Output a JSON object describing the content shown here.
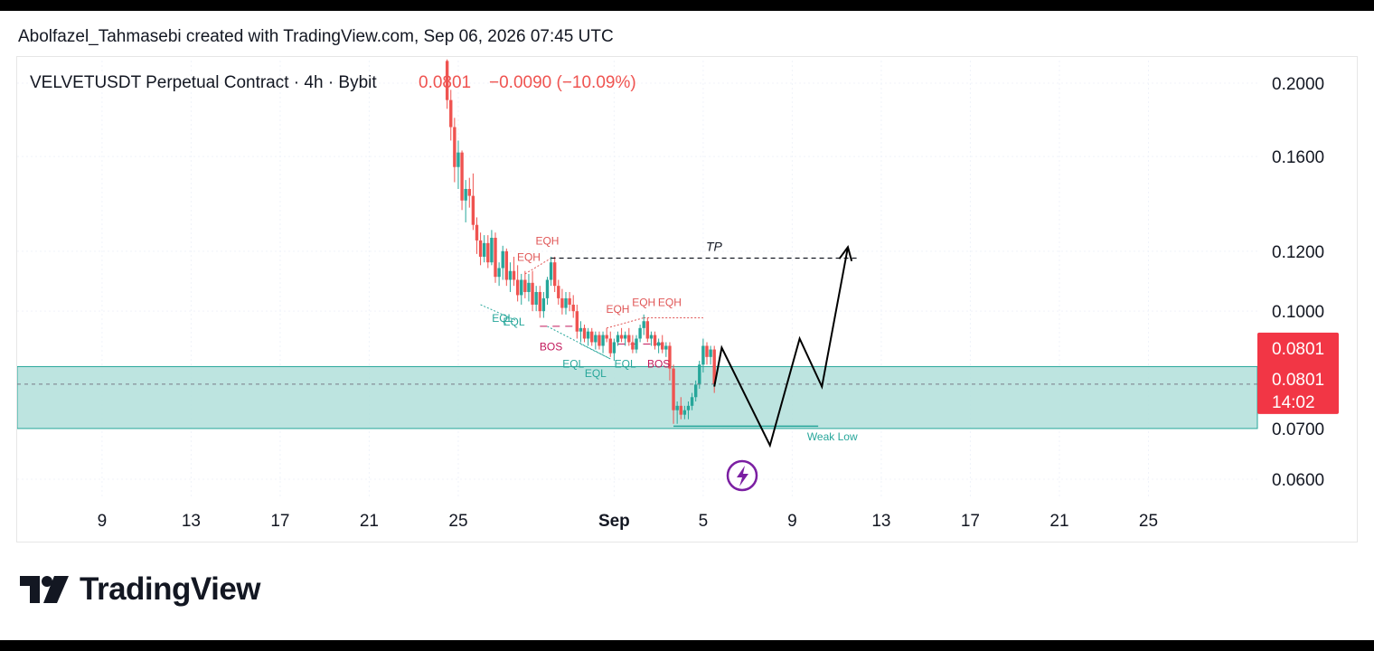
{
  "credit": "Abolfazel_Tahmasebi created with TradingView.com, Sep 06, 2026 07:45 UTC",
  "legend": {
    "symbol": "VELVETUSDT Perpetual Contract · 4h · Bybit",
    "price": "0.0801",
    "change": "−0.0090 (−10.09%)"
  },
  "brand": {
    "name": "TradingView"
  },
  "colors": {
    "up": "#26a69a",
    "down": "#ef5350",
    "zone": "#b2dfdb",
    "price_tag": "#f23645",
    "bos_label": "#c2185b",
    "eqh_label": "#e05555",
    "eql_label": "#26a69a",
    "projection": "#000000",
    "icon": "#7b1fa2"
  },
  "chart_data": {
    "type": "candlestick",
    "y_scale": "log",
    "ylim": [
      0.057,
      0.21
    ],
    "y_ticks": [
      {
        "value": 0.2,
        "label": "0.2000"
      },
      {
        "value": 0.16,
        "label": "0.1600"
      },
      {
        "value": 0.12,
        "label": "0.1200"
      },
      {
        "value": 0.1,
        "label": "0.1000"
      },
      {
        "value": 0.07,
        "label": "0.0700"
      },
      {
        "value": 0.06,
        "label": "0.0600"
      }
    ],
    "x_domain": [
      "Aug 6",
      "Sep 29"
    ],
    "x_ticks": [
      {
        "date": "Aug 9",
        "label": "9"
      },
      {
        "date": "Aug 13",
        "label": "13"
      },
      {
        "date": "Aug 17",
        "label": "17"
      },
      {
        "date": "Aug 21",
        "label": "21"
      },
      {
        "date": "Aug 25",
        "label": "25"
      },
      {
        "date": "Sep 1",
        "label": "Sep",
        "bold": true
      },
      {
        "date": "Sep 5",
        "label": "5"
      },
      {
        "date": "Sep 9",
        "label": "9"
      },
      {
        "date": "Sep 13",
        "label": "13"
      },
      {
        "date": "Sep 17",
        "label": "17"
      },
      {
        "date": "Sep 21",
        "label": "21"
      },
      {
        "date": "Sep 25",
        "label": "25"
      }
    ],
    "candles": [
      {
        "t": "Aug 24 12:00",
        "o": 0.214,
        "h": 0.215,
        "l": 0.185,
        "c": 0.19
      },
      {
        "t": "Aug 24 16:00",
        "o": 0.19,
        "h": 0.196,
        "l": 0.168,
        "c": 0.175
      },
      {
        "t": "Aug 24 20:00",
        "o": 0.175,
        "h": 0.18,
        "l": 0.148,
        "c": 0.155
      },
      {
        "t": "Aug 25 00:00",
        "o": 0.155,
        "h": 0.168,
        "l": 0.145,
        "c": 0.162
      },
      {
        "t": "Aug 25 04:00",
        "o": 0.162,
        "h": 0.163,
        "l": 0.136,
        "c": 0.14
      },
      {
        "t": "Aug 25 08:00",
        "o": 0.14,
        "h": 0.149,
        "l": 0.131,
        "c": 0.145
      },
      {
        "t": "Aug 25 12:00",
        "o": 0.145,
        "h": 0.15,
        "l": 0.137,
        "c": 0.142
      },
      {
        "t": "Aug 25 16:00",
        "o": 0.142,
        "h": 0.152,
        "l": 0.128,
        "c": 0.13
      },
      {
        "t": "Aug 25 20:00",
        "o": 0.13,
        "h": 0.133,
        "l": 0.119,
        "c": 0.124
      },
      {
        "t": "Aug 26 00:00",
        "o": 0.124,
        "h": 0.127,
        "l": 0.115,
        "c": 0.118
      },
      {
        "t": "Aug 26 04:00",
        "o": 0.118,
        "h": 0.126,
        "l": 0.116,
        "c": 0.123
      },
      {
        "t": "Aug 26 08:00",
        "o": 0.123,
        "h": 0.126,
        "l": 0.114,
        "c": 0.116
      },
      {
        "t": "Aug 26 12:00",
        "o": 0.116,
        "h": 0.128,
        "l": 0.115,
        "c": 0.125
      },
      {
        "t": "Aug 26 16:00",
        "o": 0.125,
        "h": 0.127,
        "l": 0.109,
        "c": 0.111
      },
      {
        "t": "Aug 26 20:00",
        "o": 0.111,
        "h": 0.116,
        "l": 0.108,
        "c": 0.114
      },
      {
        "t": "Aug 27 00:00",
        "o": 0.114,
        "h": 0.122,
        "l": 0.11,
        "c": 0.12
      },
      {
        "t": "Aug 27 04:00",
        "o": 0.12,
        "h": 0.121,
        "l": 0.108,
        "c": 0.11
      },
      {
        "t": "Aug 27 08:00",
        "o": 0.11,
        "h": 0.116,
        "l": 0.106,
        "c": 0.113
      },
      {
        "t": "Aug 27 12:00",
        "o": 0.113,
        "h": 0.118,
        "l": 0.108,
        "c": 0.11
      },
      {
        "t": "Aug 27 16:00",
        "o": 0.11,
        "h": 0.115,
        "l": 0.103,
        "c": 0.105
      },
      {
        "t": "Aug 27 20:00",
        "o": 0.105,
        "h": 0.112,
        "l": 0.102,
        "c": 0.11
      },
      {
        "t": "Aug 28 00:00",
        "o": 0.11,
        "h": 0.113,
        "l": 0.104,
        "c": 0.106
      },
      {
        "t": "Aug 28 04:00",
        "o": 0.106,
        "h": 0.112,
        "l": 0.103,
        "c": 0.109
      },
      {
        "t": "Aug 28 08:00",
        "o": 0.109,
        "h": 0.113,
        "l": 0.1,
        "c": 0.102
      },
      {
        "t": "Aug 28 12:00",
        "o": 0.102,
        "h": 0.108,
        "l": 0.1,
        "c": 0.106
      },
      {
        "t": "Aug 28 16:00",
        "o": 0.106,
        "h": 0.108,
        "l": 0.098,
        "c": 0.1
      },
      {
        "t": "Aug 28 20:00",
        "o": 0.1,
        "h": 0.106,
        "l": 0.098,
        "c": 0.104
      },
      {
        "t": "Aug 29 00:00",
        "o": 0.104,
        "h": 0.111,
        "l": 0.102,
        "c": 0.11
      },
      {
        "t": "Aug 29 04:00",
        "o": 0.11,
        "h": 0.118,
        "l": 0.108,
        "c": 0.116
      },
      {
        "t": "Aug 29 08:00",
        "o": 0.116,
        "h": 0.118,
        "l": 0.106,
        "c": 0.108
      },
      {
        "t": "Aug 29 12:00",
        "o": 0.108,
        "h": 0.11,
        "l": 0.102,
        "c": 0.104
      },
      {
        "t": "Aug 29 16:00",
        "o": 0.104,
        "h": 0.107,
        "l": 0.099,
        "c": 0.101
      },
      {
        "t": "Aug 29 20:00",
        "o": 0.101,
        "h": 0.106,
        "l": 0.099,
        "c": 0.104
      },
      {
        "t": "Aug 30 00:00",
        "o": 0.104,
        "h": 0.106,
        "l": 0.1,
        "c": 0.102
      },
      {
        "t": "Aug 30 04:00",
        "o": 0.102,
        "h": 0.105,
        "l": 0.098,
        "c": 0.1
      },
      {
        "t": "Aug 30 08:00",
        "o": 0.1,
        "h": 0.102,
        "l": 0.092,
        "c": 0.094
      },
      {
        "t": "Aug 30 12:00",
        "o": 0.094,
        "h": 0.097,
        "l": 0.091,
        "c": 0.095
      },
      {
        "t": "Aug 30 16:00",
        "o": 0.095,
        "h": 0.096,
        "l": 0.091,
        "c": 0.092
      },
      {
        "t": "Aug 30 20:00",
        "o": 0.092,
        "h": 0.095,
        "l": 0.09,
        "c": 0.094
      },
      {
        "t": "Aug 31 00:00",
        "o": 0.094,
        "h": 0.095,
        "l": 0.09,
        "c": 0.091
      },
      {
        "t": "Aug 31 04:00",
        "o": 0.091,
        "h": 0.094,
        "l": 0.089,
        "c": 0.093
      },
      {
        "t": "Aug 31 08:00",
        "o": 0.093,
        "h": 0.094,
        "l": 0.089,
        "c": 0.09
      },
      {
        "t": "Aug 31 12:00",
        "o": 0.09,
        "h": 0.094,
        "l": 0.088,
        "c": 0.093
      },
      {
        "t": "Aug 31 16:00",
        "o": 0.093,
        "h": 0.095,
        "l": 0.091,
        "c": 0.092
      },
      {
        "t": "Aug 31 20:00",
        "o": 0.092,
        "h": 0.094,
        "l": 0.087,
        "c": 0.088
      },
      {
        "t": "Sep 1 00:00",
        "o": 0.088,
        "h": 0.092,
        "l": 0.086,
        "c": 0.091
      },
      {
        "t": "Sep 1 04:00",
        "o": 0.091,
        "h": 0.094,
        "l": 0.09,
        "c": 0.093
      },
      {
        "t": "Sep 1 08:00",
        "o": 0.093,
        "h": 0.095,
        "l": 0.091,
        "c": 0.092
      },
      {
        "t": "Sep 1 12:00",
        "o": 0.092,
        "h": 0.094,
        "l": 0.09,
        "c": 0.093
      },
      {
        "t": "Sep 1 16:00",
        "o": 0.093,
        "h": 0.095,
        "l": 0.09,
        "c": 0.091
      },
      {
        "t": "Sep 1 20:00",
        "o": 0.091,
        "h": 0.093,
        "l": 0.088,
        "c": 0.089
      },
      {
        "t": "Sep 2 00:00",
        "o": 0.089,
        "h": 0.093,
        "l": 0.088,
        "c": 0.092
      },
      {
        "t": "Sep 2 04:00",
        "o": 0.092,
        "h": 0.096,
        "l": 0.091,
        "c": 0.095
      },
      {
        "t": "Sep 2 08:00",
        "o": 0.095,
        "h": 0.099,
        "l": 0.093,
        "c": 0.097
      },
      {
        "t": "Sep 2 12:00",
        "o": 0.097,
        "h": 0.098,
        "l": 0.091,
        "c": 0.092
      },
      {
        "t": "Sep 2 16:00",
        "o": 0.092,
        "h": 0.094,
        "l": 0.09,
        "c": 0.093
      },
      {
        "t": "Sep 2 20:00",
        "o": 0.093,
        "h": 0.094,
        "l": 0.089,
        "c": 0.09
      },
      {
        "t": "Sep 3 00:00",
        "o": 0.09,
        "h": 0.092,
        "l": 0.088,
        "c": 0.091
      },
      {
        "t": "Sep 3 04:00",
        "o": 0.091,
        "h": 0.093,
        "l": 0.088,
        "c": 0.089
      },
      {
        "t": "Sep 3 08:00",
        "o": 0.089,
        "h": 0.091,
        "l": 0.087,
        "c": 0.09
      },
      {
        "t": "Sep 3 12:00",
        "o": 0.09,
        "h": 0.091,
        "l": 0.081,
        "c": 0.084
      },
      {
        "t": "Sep 3 16:00",
        "o": 0.084,
        "h": 0.085,
        "l": 0.071,
        "c": 0.074
      },
      {
        "t": "Sep 3 20:00",
        "o": 0.074,
        "h": 0.076,
        "l": 0.071,
        "c": 0.075
      },
      {
        "t": "Sep 4 00:00",
        "o": 0.075,
        "h": 0.077,
        "l": 0.072,
        "c": 0.073
      },
      {
        "t": "Sep 4 04:00",
        "o": 0.073,
        "h": 0.075,
        "l": 0.072,
        "c": 0.074
      },
      {
        "t": "Sep 4 08:00",
        "o": 0.074,
        "h": 0.076,
        "l": 0.072,
        "c": 0.075
      },
      {
        "t": "Sep 4 12:00",
        "o": 0.075,
        "h": 0.078,
        "l": 0.074,
        "c": 0.077
      },
      {
        "t": "Sep 4 16:00",
        "o": 0.077,
        "h": 0.081,
        "l": 0.076,
        "c": 0.08
      },
      {
        "t": "Sep 4 20:00",
        "o": 0.08,
        "h": 0.086,
        "l": 0.079,
        "c": 0.085
      },
      {
        "t": "Sep 5 00:00",
        "o": 0.085,
        "h": 0.092,
        "l": 0.083,
        "c": 0.09
      },
      {
        "t": "Sep 5 04:00",
        "o": 0.09,
        "h": 0.091,
        "l": 0.085,
        "c": 0.087
      },
      {
        "t": "Sep 5 08:00",
        "o": 0.087,
        "h": 0.09,
        "l": 0.085,
        "c": 0.089
      },
      {
        "t": "Sep 5 12:00",
        "o": 0.089,
        "h": 0.09,
        "l": 0.078,
        "c": 0.0801
      }
    ],
    "current_price": {
      "value": 0.0801,
      "labels": [
        "0.0801",
        "0.0801"
      ],
      "countdown": "14:02"
    },
    "zones": [
      {
        "name": "demand-zone",
        "from": 0.07,
        "to": 0.0845
      }
    ],
    "levels": [
      {
        "name": "tp",
        "label": "TP",
        "value": 0.1175,
        "from": "Aug 29 04:00",
        "to": "Sep 12"
      },
      {
        "name": "weak-low",
        "label": "Weak Low",
        "value": 0.0705,
        "from": "Sep 3 16:00",
        "to": "Sep 10 04:00"
      }
    ],
    "annotations": [
      {
        "text": "EQH",
        "t": "Aug 28 04:00",
        "p": 0.1165,
        "kind": "eqh"
      },
      {
        "text": "EQH",
        "t": "Aug 29 00:00",
        "p": 0.1225,
        "kind": "eqh"
      },
      {
        "text": "EQH",
        "t": "Sep 1 04:00",
        "p": 0.0995,
        "kind": "eqh"
      },
      {
        "text": "EQH",
        "t": "Sep 2 08:00",
        "p": 0.1015,
        "kind": "eqh"
      },
      {
        "text": "EQH",
        "t": "Sep 3 12:00",
        "p": 0.1015,
        "kind": "eqh"
      },
      {
        "text": "EQL",
        "t": "Aug 27 00:00",
        "p": 0.0968,
        "kind": "eql"
      },
      {
        "text": "EQL",
        "t": "Aug 27 12:00",
        "p": 0.0958,
        "kind": "eql"
      },
      {
        "text": "BOS",
        "t": "Aug 29 04:00",
        "p": 0.0888,
        "kind": "bos"
      },
      {
        "text": "EQL",
        "t": "Aug 30 04:00",
        "p": 0.0843,
        "kind": "eql"
      },
      {
        "text": "EQL",
        "t": "Aug 31 04:00",
        "p": 0.0818,
        "kind": "eql"
      },
      {
        "text": "EQL",
        "t": "Sep 1 12:00",
        "p": 0.0843,
        "kind": "eql"
      },
      {
        "text": "BOS",
        "t": "Sep 3 00:00",
        "p": 0.0843,
        "kind": "bos"
      },
      {
        "text": "Weak Low",
        "t": "Sep 9 16:00",
        "p": 0.0675,
        "kind": "eql"
      }
    ],
    "structure_lines": [
      {
        "kind": "eqh",
        "points": [
          [
            "Aug 28 00:00",
            0.112
          ],
          [
            "Aug 29 04:00",
            0.1175
          ]
        ]
      },
      {
        "kind": "eql",
        "points": [
          [
            "Aug 26 00:00",
            0.102
          ],
          [
            "Aug 27 16:00",
            0.097
          ]
        ]
      },
      {
        "kind": "eql",
        "points": [
          [
            "Aug 30 12:00",
            0.0905
          ],
          [
            "Aug 31 20:00",
            0.0865
          ]
        ]
      },
      {
        "kind": "eql",
        "points": [
          [
            "Aug 29 00:00",
            0.0955
          ],
          [
            "Aug 31 20:00",
            0.0865
          ]
        ]
      },
      {
        "kind": "eqh",
        "points": [
          [
            "Aug 31 16:00",
            0.095
          ],
          [
            "Sep 2 08:00",
            0.098
          ]
        ]
      },
      {
        "kind": "eqh",
        "points": [
          [
            "Sep 2 08:00",
            0.098
          ],
          [
            "Sep 5 00:00",
            0.098
          ]
        ]
      },
      {
        "kind": "bos",
        "points": [
          [
            "Aug 28 16:00",
            0.0955
          ],
          [
            "Aug 30 04:00",
            0.0955
          ]
        ]
      },
      {
        "kind": "bos",
        "points": [
          [
            "Sep 1 04:00",
            0.0905
          ],
          [
            "Sep 3 04:00",
            0.0905
          ]
        ]
      }
    ],
    "projection_path": [
      [
        "Sep 5 12:00",
        0.0795
      ],
      [
        "Sep 5 20:00",
        0.0895
      ],
      [
        "Sep 8 00:00",
        0.0665
      ],
      [
        "Sep 9 08:00",
        0.092
      ],
      [
        "Sep 10 08:00",
        0.0795
      ],
      [
        "Sep 11 12:00",
        0.1215
      ]
    ]
  }
}
